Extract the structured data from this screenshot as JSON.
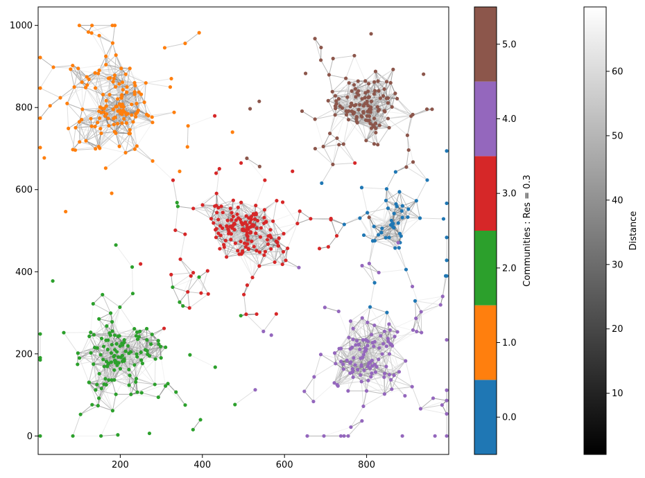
{
  "chart_data": {
    "type": "scatter",
    "subtype": "network-graph",
    "title": "",
    "xlabel": "",
    "ylabel": "",
    "xlim": [
      0,
      1000
    ],
    "ylim": [
      -45,
      1045
    ],
    "x_ticks": [
      200,
      400,
      600,
      800
    ],
    "y_ticks": [
      0,
      200,
      400,
      600,
      800,
      1000
    ],
    "x_tick_labels": [
      "200",
      "400",
      "600",
      "800"
    ],
    "y_tick_labels": [
      "0",
      "200",
      "400",
      "600",
      "800",
      "1000"
    ],
    "grid": false,
    "communities": [
      {
        "id": 0,
        "color": "#1f77b4",
        "center": [
          870,
          520
        ],
        "spread": 75,
        "count": 55,
        "note_shape": "sparse"
      },
      {
        "id": 1,
        "color": "#ff7f0e",
        "center": [
          190,
          800
        ],
        "spread": 75,
        "count": 150
      },
      {
        "id": 2,
        "color": "#2ca02c",
        "center": [
          200,
          200
        ],
        "spread": 75,
        "count": 150
      },
      {
        "id": 3,
        "color": "#d62728",
        "center": [
          500,
          500
        ],
        "spread": 70,
        "count": 170
      },
      {
        "id": 4,
        "color": "#9467bd",
        "center": [
          800,
          190
        ],
        "spread": 75,
        "count": 140
      },
      {
        "id": 5,
        "color": "#8c564b",
        "center": [
          790,
          800
        ],
        "spread": 70,
        "count": 140
      }
    ],
    "community_colorbar": {
      "label": "Communities : Res = 0.3",
      "ticks": [
        "0.0",
        "1.0",
        "2.0",
        "3.0",
        "4.0",
        "5.0"
      ],
      "colors": [
        "#1f77b4",
        "#ff7f0e",
        "#2ca02c",
        "#d62728",
        "#9467bd",
        "#8c564b"
      ]
    },
    "distance_colorbar": {
      "label": "Distance",
      "range": [
        0.5,
        70
      ],
      "ticks": [
        "10",
        "20",
        "30",
        "40",
        "50",
        "60"
      ],
      "tick_values": [
        10,
        20,
        30,
        40,
        50,
        60
      ],
      "colormap": "gray"
    },
    "edge_color_meaning": "edge gray level encodes distance (dark = short)"
  }
}
